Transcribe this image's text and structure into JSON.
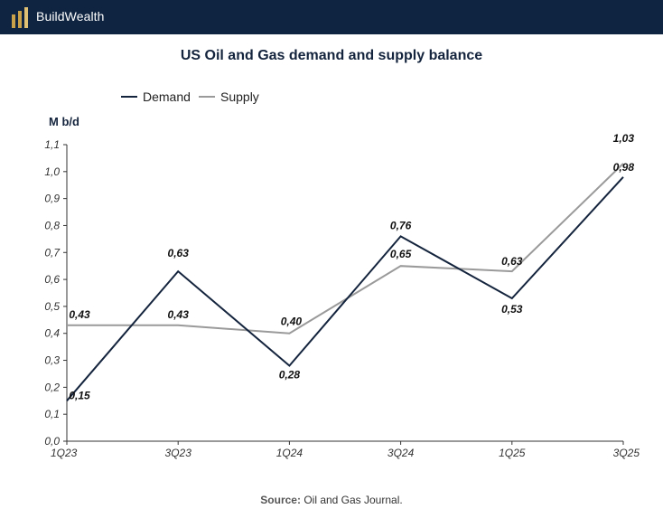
{
  "header": {
    "brand": "BuildWealth",
    "brand_color": "#0f2440"
  },
  "footer": {
    "source_prefix": "Source:",
    "source_text": "Oil and Gas Journal."
  },
  "chart_data": {
    "type": "line",
    "title": "US Oil and Gas demand and supply balance",
    "ylabel": "M b/d",
    "xlabel": "",
    "categories": [
      "1Q23",
      "3Q23",
      "1Q24",
      "3Q24",
      "1Q25",
      "3Q25"
    ],
    "x": [
      0,
      2,
      4,
      6,
      8,
      10
    ],
    "ylim": [
      0,
      1.1
    ],
    "yticks": [
      "0,0",
      "0,1",
      "0,2",
      "0,3",
      "0,4",
      "0,5",
      "0,6",
      "0,7",
      "0,8",
      "0,9",
      "1,0",
      "1,1"
    ],
    "grid": false,
    "legend_position": "top-left",
    "series": [
      {
        "name": "Demand",
        "color": "#14243d",
        "points": [
          [
            0,
            0.15
          ],
          [
            2,
            0.63
          ],
          [
            4,
            0.28
          ],
          [
            6,
            0.76
          ],
          [
            8,
            0.53
          ],
          [
            10,
            0.98
          ]
        ],
        "labels": [
          "0,15",
          "0,63",
          "0,28",
          "0,76",
          "0,53",
          "0,98"
        ]
      },
      {
        "name": "Supply",
        "color": "#9a9a9a",
        "points": [
          [
            0,
            0.43
          ],
          [
            2,
            0.43
          ],
          [
            4,
            0.4
          ],
          [
            6,
            0.65
          ],
          [
            8,
            0.63
          ],
          [
            10,
            1.03
          ]
        ],
        "labels": [
          "0,43",
          "0,43",
          "0,40",
          "0,65",
          "0,63",
          "1,03"
        ]
      }
    ]
  }
}
